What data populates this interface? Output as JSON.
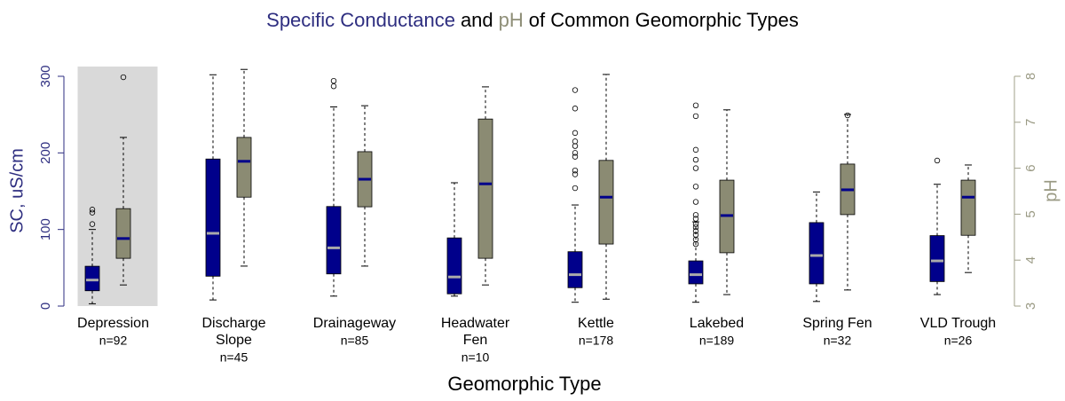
{
  "chart_data": {
    "type": "box",
    "title_parts": [
      "Specific Conductance",
      "and",
      "pH",
      "of Common Geomorphic Types"
    ],
    "title_colors": [
      "#2e2e80",
      "#000000",
      "#8f8f78",
      "#000000"
    ],
    "xlabel": "Geomorphic Type",
    "ylabel": "SC, uS/cm",
    "y2label": "pH",
    "categories": [
      [
        "Depression"
      ],
      [
        "Discharge",
        "Slope"
      ],
      [
        "Drainageway"
      ],
      [
        "Headwater",
        "Fen"
      ],
      [
        "Kettle"
      ],
      [
        "Lakebed"
      ],
      [
        "Spring Fen"
      ],
      [
        "VLD Trough"
      ]
    ],
    "n_labels": [
      "n=92",
      "n=45",
      "n=85",
      "n=10",
      "n=178",
      "n=189",
      "n=32",
      "n=26"
    ],
    "highlight": "Depression",
    "ylim": [
      0,
      300
    ],
    "yticks": [
      0,
      100,
      200,
      300
    ],
    "y2lim": [
      3,
      8
    ],
    "y2ticks": [
      3,
      4,
      5,
      6,
      7,
      8
    ],
    "series": [
      {
        "name": "Specific Conductance",
        "color": "#00008b",
        "median_color": "#aaaaaa",
        "axis": "y",
        "boxes": [
          {
            "whislo": 3,
            "q1": 20,
            "med": 34,
            "q3": 52,
            "whishi": 100,
            "fliers": [
              107,
              122,
              126
            ]
          },
          {
            "whislo": 8,
            "q1": 39,
            "med": 95,
            "q3": 192,
            "whishi": 302,
            "fliers": []
          },
          {
            "whislo": 13,
            "q1": 42,
            "med": 76,
            "q3": 130,
            "whishi": 260,
            "fliers": [
              287,
              294
            ]
          },
          {
            "whislo": 13,
            "q1": 16,
            "med": 38,
            "q3": 89,
            "whishi": 161,
            "fliers": []
          },
          {
            "whislo": 5,
            "q1": 24,
            "med": 41,
            "q3": 71,
            "whishi": 132,
            "fliers": [
              154,
              172,
              177,
              195,
              200,
              209,
              215,
              226,
              258,
              282
            ]
          },
          {
            "whislo": 5,
            "q1": 29,
            "med": 41,
            "q3": 59,
            "whishi": 110,
            "fliers": [
              81,
              87,
              93,
              98,
              103,
              107,
              114,
              119,
              136,
              156,
              180,
              191,
              204,
              248,
              262
            ]
          },
          {
            "whislo": 6,
            "q1": 29,
            "med": 66,
            "q3": 109,
            "whishi": 149,
            "fliers": []
          },
          {
            "whislo": 15,
            "q1": 32,
            "med": 59,
            "q3": 92,
            "whishi": 159,
            "fliers": [
              190
            ]
          }
        ]
      },
      {
        "name": "pH",
        "color": "#8b8b73",
        "median_color": "#00008b",
        "axis": "y2",
        "boxes": [
          {
            "whislo": 3.46,
            "q1": 4.04,
            "med": 4.47,
            "q3": 5.12,
            "whishi": 6.67,
            "fliers": [
              7.98
            ]
          },
          {
            "whislo": 3.87,
            "q1": 5.37,
            "med": 6.15,
            "q3": 6.67,
            "whishi": 8.15,
            "fliers": []
          },
          {
            "whislo": 3.87,
            "q1": 5.16,
            "med": 5.76,
            "q3": 6.36,
            "whishi": 7.36,
            "fliers": []
          },
          {
            "whislo": 3.46,
            "q1": 4.04,
            "med": 5.66,
            "q3": 7.07,
            "whishi": 7.77,
            "fliers": []
          },
          {
            "whislo": 3.15,
            "q1": 4.35,
            "med": 5.37,
            "q3": 6.17,
            "whishi": 8.04,
            "fliers": []
          },
          {
            "whislo": 3.25,
            "q1": 4.16,
            "med": 4.97,
            "q3": 5.74,
            "whishi": 7.27,
            "fliers": []
          },
          {
            "whislo": 3.35,
            "q1": 4.99,
            "med": 5.53,
            "q3": 6.09,
            "whishi": 7.17,
            "fliers": [
              7.15
            ]
          },
          {
            "whislo": 3.73,
            "q1": 4.54,
            "med": 5.37,
            "q3": 5.74,
            "whishi": 6.07,
            "fliers": []
          }
        ]
      }
    ]
  }
}
